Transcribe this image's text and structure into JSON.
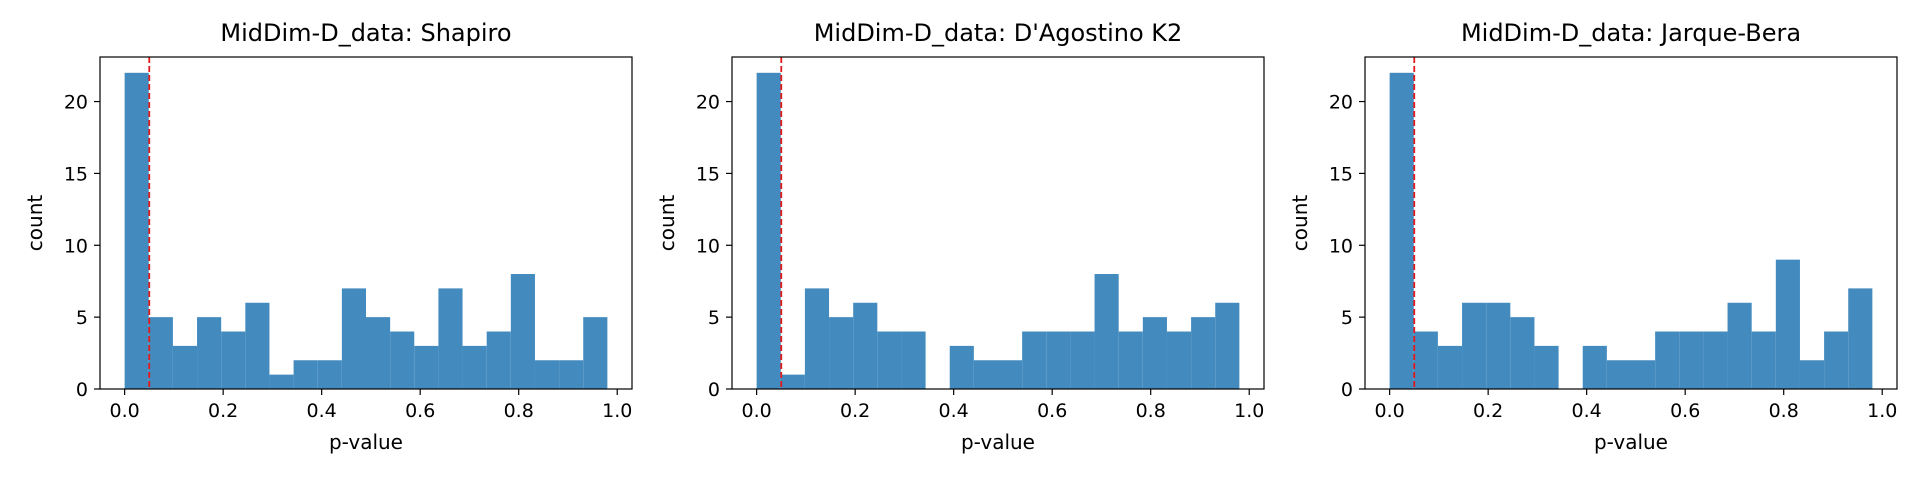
{
  "chart_data": [
    {
      "type": "bar",
      "title": "MidDim-D_data: Shapiro",
      "xlabel": "p-value",
      "ylabel": "count",
      "xlim": [
        -0.05,
        1.03
      ],
      "ylim": [
        0,
        23.1
      ],
      "bin_edges": [
        0.0,
        0.049,
        0.098,
        0.147,
        0.196,
        0.245,
        0.294,
        0.343,
        0.392,
        0.441,
        0.49,
        0.539,
        0.588,
        0.637,
        0.686,
        0.735,
        0.784,
        0.833,
        0.882,
        0.931,
        0.98
      ],
      "counts": [
        22,
        5,
        3,
        5,
        4,
        6,
        1,
        2,
        2,
        7,
        5,
        4,
        3,
        7,
        3,
        4,
        8,
        2,
        2,
        5
      ],
      "threshold": 0.05,
      "x_ticks": [
        "0.0",
        "0.2",
        "0.4",
        "0.6",
        "0.8",
        "1.0"
      ],
      "y_ticks": [
        "0",
        "5",
        "10",
        "15",
        "20"
      ],
      "bar_color": "#438bbf",
      "threshold_color": "#e31a1c"
    },
    {
      "type": "bar",
      "title": "MidDim-D_data: D'Agostino K2",
      "xlabel": "p-value",
      "ylabel": "count",
      "xlim": [
        -0.05,
        1.03
      ],
      "ylim": [
        0,
        23.1
      ],
      "bin_edges": [
        0.0,
        0.049,
        0.098,
        0.147,
        0.196,
        0.245,
        0.294,
        0.343,
        0.392,
        0.441,
        0.49,
        0.539,
        0.588,
        0.637,
        0.686,
        0.735,
        0.784,
        0.833,
        0.882,
        0.931,
        0.98
      ],
      "counts": [
        22,
        1,
        7,
        5,
        6,
        4,
        4,
        0,
        3,
        2,
        2,
        4,
        4,
        4,
        8,
        4,
        5,
        4,
        5,
        6
      ],
      "threshold": 0.05,
      "x_ticks": [
        "0.0",
        "0.2",
        "0.4",
        "0.6",
        "0.8",
        "1.0"
      ],
      "y_ticks": [
        "0",
        "5",
        "10",
        "15",
        "20"
      ],
      "bar_color": "#438bbf",
      "threshold_color": "#e31a1c"
    },
    {
      "type": "bar",
      "title": "MidDim-D_data: Jarque-Bera",
      "xlabel": "p-value",
      "ylabel": "count",
      "xlim": [
        -0.05,
        1.03
      ],
      "ylim": [
        0,
        23.1
      ],
      "bin_edges": [
        0.0,
        0.049,
        0.098,
        0.147,
        0.196,
        0.245,
        0.294,
        0.343,
        0.392,
        0.441,
        0.49,
        0.539,
        0.588,
        0.637,
        0.686,
        0.735,
        0.784,
        0.833,
        0.882,
        0.931,
        0.98
      ],
      "counts": [
        22,
        4,
        3,
        6,
        6,
        5,
        3,
        0,
        3,
        2,
        2,
        4,
        4,
        4,
        6,
        4,
        9,
        2,
        4,
        7
      ],
      "threshold": 0.05,
      "x_ticks": [
        "0.0",
        "0.2",
        "0.4",
        "0.6",
        "0.8",
        "1.0"
      ],
      "y_ticks": [
        "0",
        "5",
        "10",
        "15",
        "20"
      ],
      "bar_color": "#438bbf",
      "threshold_color": "#e31a1c"
    }
  ]
}
